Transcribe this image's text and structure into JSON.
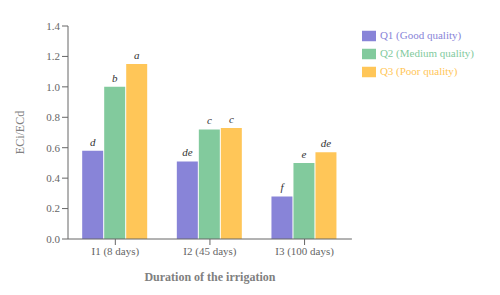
{
  "chart_data": {
    "type": "bar",
    "xlabel": "Duration of the irrigation",
    "ylabel": "ECi/ECd",
    "categories": [
      "I1 (8 days)",
      "I2 (45 days)",
      "I3 (100 days)"
    ],
    "series": [
      {
        "name": "Q1 (Good quality)",
        "color": "#8884d8",
        "values": [
          0.58,
          0.51,
          0.28
        ],
        "labels": [
          "d",
          "de",
          "f"
        ]
      },
      {
        "name": "Q2 (Medium quality)",
        "color": "#82ca9d",
        "values": [
          1.0,
          0.72,
          0.5
        ],
        "labels": [
          "b",
          "c",
          "e"
        ]
      },
      {
        "name": "Q3 (Poor quality)",
        "color": "#ffc658",
        "values": [
          1.15,
          0.73,
          0.57
        ],
        "labels": [
          "a",
          "c",
          "de"
        ]
      }
    ],
    "ylim": [
      0,
      1.4
    ],
    "yticks": [
      {
        "value": 0.0,
        "label": "0.0"
      },
      0.2,
      0.4,
      0.6,
      0.8,
      {
        "value": 1.0,
        "label": "1.0"
      },
      1.2,
      {
        "value": 1.4,
        "label": "1.4"
      }
    ],
    "grid": false,
    "legend": "right"
  }
}
